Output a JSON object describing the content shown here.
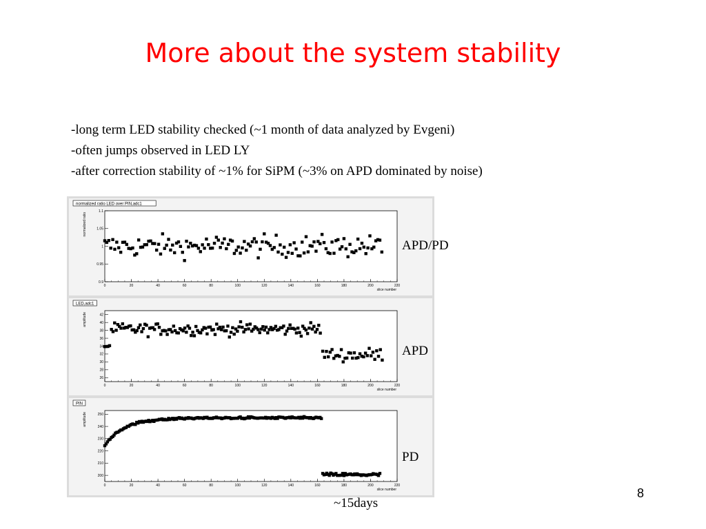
{
  "slide": {
    "title": "More about the system stability",
    "bullets": [
      "-long term LED stability checked (~1 month of data analyzed by Evgeni)",
      "-often jumps observed in LED LY",
      "-after correction stability of ~1% for SiPM (~3% on APD dominated by noise)"
    ],
    "page_number": "8",
    "duration_label": "~15days",
    "side_labels": [
      "APD/PD",
      "APD",
      "PD"
    ]
  },
  "chart_data": [
    {
      "type": "scatter",
      "title": "normalized ratio LED over PIN,adc1",
      "xlabel": "slice number",
      "ylabel": "normalized ratio",
      "xlim": [
        0,
        220
      ],
      "ylim": [
        0.9,
        1.1
      ],
      "xticks": [
        "0",
        "20",
        "40",
        "60",
        "80",
        "100",
        "120",
        "140",
        "160",
        "180",
        "200",
        "220"
      ],
      "yticks": [
        "0.9",
        "0.95",
        "1",
        "1.05",
        "1.1"
      ],
      "yticks_values": [
        0.9,
        0.95,
        1.0,
        1.05,
        1.1
      ],
      "segments": [
        {
          "x_start": 0,
          "x_end": 209,
          "step": 1.5,
          "base": 1.0,
          "noise": 0.022
        }
      ]
    },
    {
      "type": "scatter",
      "title": "LED,adc1",
      "xlabel": "slice number",
      "ylabel": "amplitude",
      "xlim": [
        0,
        220
      ],
      "ylim": [
        25,
        43
      ],
      "xticks": [
        "0",
        "20",
        "40",
        "60",
        "80",
        "100",
        "120",
        "140",
        "160",
        "180",
        "200",
        "220"
      ],
      "yticks": [
        "26",
        "28",
        "30",
        "32",
        "34",
        "36",
        "38",
        "40",
        "42"
      ],
      "yticks_values": [
        26,
        28,
        30,
        32,
        34,
        36,
        38,
        40,
        42
      ],
      "segments": [
        {
          "x_start": 0,
          "x_end": 4,
          "step": 1.2,
          "base": 34.0,
          "noise": 0.5
        },
        {
          "x_start": 5,
          "x_end": 163,
          "step": 1.2,
          "base": 38.3,
          "noise": 1.1
        },
        {
          "x_start": 164,
          "x_end": 209,
          "step": 1.4,
          "base": 31.8,
          "noise": 1.2
        }
      ]
    },
    {
      "type": "scatter",
      "title": "PIN",
      "xlabel": "slice number",
      "ylabel": "amplitude",
      "xlim": [
        0,
        220
      ],
      "ylim": [
        195,
        253
      ],
      "xticks": [
        "0",
        "20",
        "40",
        "60",
        "80",
        "100",
        "120",
        "140",
        "160",
        "180",
        "200",
        "220"
      ],
      "yticks": [
        "200",
        "210",
        "220",
        "230",
        "240",
        "250"
      ],
      "yticks_values": [
        200,
        210,
        220,
        230,
        240,
        250
      ],
      "segments": [
        {
          "x_start": 0,
          "x_end": 163,
          "step": 1.0,
          "base": 247.0,
          "noise": 0.6,
          "rise_from": 225.0,
          "rise_tau": 15
        },
        {
          "x_start": 164,
          "x_end": 207,
          "step": 1.0,
          "base": 200.5,
          "noise": 1.0
        }
      ]
    }
  ]
}
